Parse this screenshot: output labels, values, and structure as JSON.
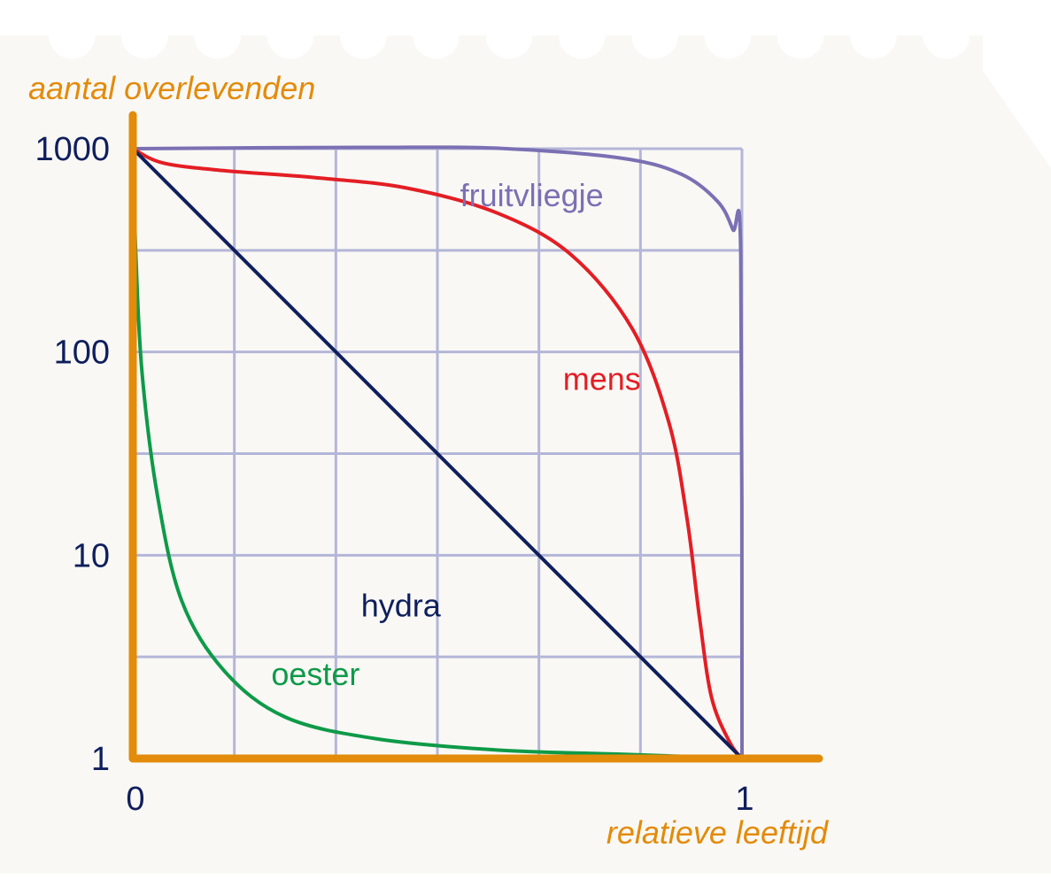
{
  "colors": {
    "paper": "#f9f8f5",
    "axis": "#e38b0a",
    "grid": "#b4b6d8",
    "tick_text": "#0f1f5c",
    "axis_label": "#e38b0a"
  },
  "chart_data": {
    "type": "line",
    "xlabel": "relatieve leeftijd",
    "ylabel": "aantal overlevenden",
    "xscale": "linear",
    "yscale": "log",
    "xlim": [
      0,
      1
    ],
    "ylim": [
      1,
      1000
    ],
    "x_ticks": [
      {
        "value": 0,
        "label": "0"
      },
      {
        "value": 1,
        "label": "1"
      }
    ],
    "y_ticks": [
      {
        "value": 1,
        "label": "1"
      },
      {
        "value": 10,
        "label": "10"
      },
      {
        "value": 100,
        "label": "100"
      },
      {
        "value": 1000,
        "label": "1000"
      }
    ],
    "grid": true,
    "series": [
      {
        "name": "fruitvliegje",
        "color": "#7b70b3",
        "points": [
          [
            0,
            1000
          ],
          [
            0.2,
            1010
          ],
          [
            0.4,
            1015
          ],
          [
            0.6,
            1005
          ],
          [
            0.8,
            900
          ],
          [
            0.9,
            750
          ],
          [
            0.96,
            550
          ],
          [
            0.985,
            400
          ],
          [
            0.998,
            300
          ],
          [
            1,
            1
          ]
        ]
      },
      {
        "name": "mens",
        "color": "#e31e24",
        "points": [
          [
            0,
            1000
          ],
          [
            0.05,
            850
          ],
          [
            0.15,
            780
          ],
          [
            0.3,
            720
          ],
          [
            0.45,
            640
          ],
          [
            0.6,
            480
          ],
          [
            0.72,
            300
          ],
          [
            0.82,
            130
          ],
          [
            0.88,
            45
          ],
          [
            0.91,
            15
          ],
          [
            0.93,
            5
          ],
          [
            0.95,
            2
          ],
          [
            0.98,
            1.2
          ],
          [
            1,
            1
          ]
        ]
      },
      {
        "name": "hydra",
        "color": "#0f1f5c",
        "points": [
          [
            0,
            1000
          ],
          [
            1,
            1
          ]
        ]
      },
      {
        "name": "oester",
        "color": "#0e9a48",
        "points": [
          [
            0,
            1000
          ],
          [
            0.005,
            300
          ],
          [
            0.015,
            80
          ],
          [
            0.04,
            20
          ],
          [
            0.08,
            6
          ],
          [
            0.15,
            2.7
          ],
          [
            0.25,
            1.6
          ],
          [
            0.4,
            1.25
          ],
          [
            0.6,
            1.1
          ],
          [
            0.8,
            1.05
          ],
          [
            1,
            1
          ]
        ]
      }
    ]
  }
}
